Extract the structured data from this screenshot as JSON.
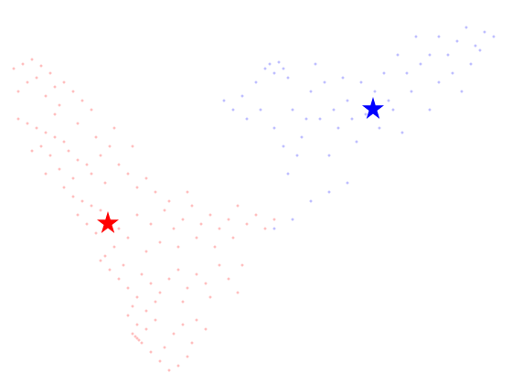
{
  "chart_data": {
    "type": "scatter",
    "xlim": [
      0,
      560
    ],
    "ylim": [
      0,
      420
    ],
    "tick_labels": false,
    "grid": false,
    "series": [
      {
        "color": "#ff0000",
        "marker": "circle",
        "values": [
          [
            15,
            345
          ],
          [
            25,
            350
          ],
          [
            35,
            355
          ],
          [
            45,
            348
          ],
          [
            55,
            340
          ],
          [
            30,
            330
          ],
          [
            40,
            335
          ],
          [
            60,
            325
          ],
          [
            70,
            330
          ],
          [
            80,
            320
          ],
          [
            20,
            320
          ],
          [
            50,
            315
          ],
          [
            90,
            310
          ],
          [
            100,
            300
          ],
          [
            65,
            305
          ],
          [
            20,
            290
          ],
          [
            30,
            285
          ],
          [
            40,
            280
          ],
          [
            50,
            275
          ],
          [
            60,
            270
          ],
          [
            70,
            265
          ],
          [
            45,
            260
          ],
          [
            35,
            255
          ],
          [
            55,
            250
          ],
          [
            75,
            255
          ],
          [
            85,
            245
          ],
          [
            95,
            240
          ],
          [
            65,
            235
          ],
          [
            50,
            230
          ],
          [
            80,
            225
          ],
          [
            100,
            230
          ],
          [
            110,
            250
          ],
          [
            120,
            260
          ],
          [
            130,
            240
          ],
          [
            115,
            220
          ],
          [
            140,
            230
          ],
          [
            150,
            215
          ],
          [
            160,
            225
          ],
          [
            170,
            210
          ],
          [
            60,
            295
          ],
          [
            85,
            285
          ],
          [
            105,
            270
          ],
          [
            125,
            280
          ],
          [
            145,
            260
          ],
          [
            70,
            215
          ],
          [
            80,
            205
          ],
          [
            90,
            200
          ],
          [
            100,
            195
          ],
          [
            110,
            190
          ],
          [
            85,
            185
          ],
          [
            95,
            175
          ],
          [
            105,
            165
          ],
          [
            120,
            180
          ],
          [
            130,
            170
          ],
          [
            140,
            160
          ],
          [
            125,
            150
          ],
          [
            150,
            185
          ],
          [
            165,
            175
          ],
          [
            180,
            190
          ],
          [
            190,
            170
          ],
          [
            200,
            180
          ],
          [
            210,
            195
          ],
          [
            220,
            175
          ],
          [
            230,
            185
          ],
          [
            240,
            170
          ],
          [
            250,
            180
          ],
          [
            260,
            195
          ],
          [
            270,
            175
          ],
          [
            280,
            185
          ],
          [
            290,
            170
          ],
          [
            300,
            180
          ],
          [
            175,
            155
          ],
          [
            195,
            150
          ],
          [
            215,
            160
          ],
          [
            235,
            150
          ],
          [
            255,
            160
          ],
          [
            160,
            145
          ],
          [
            185,
            200
          ],
          [
            205,
            210
          ],
          [
            115,
            140
          ],
          [
            110,
            135
          ],
          [
            120,
            125
          ],
          [
            130,
            115
          ],
          [
            140,
            105
          ],
          [
            150,
            95
          ],
          [
            135,
            130
          ],
          [
            155,
            120
          ],
          [
            165,
            110
          ],
          [
            175,
            100
          ],
          [
            185,
            115
          ],
          [
            195,
            125
          ],
          [
            205,
            105
          ],
          [
            215,
            120
          ],
          [
            225,
            110
          ],
          [
            240,
            130
          ],
          [
            250,
            115
          ],
          [
            145,
            85
          ],
          [
            160,
            80
          ],
          [
            170,
            90
          ],
          [
            200,
            90
          ],
          [
            230,
            95
          ],
          [
            260,
            100
          ],
          [
            265,
            130
          ],
          [
            140,
            75
          ],
          [
            150,
            65
          ],
          [
            145,
            55
          ],
          [
            155,
            45
          ],
          [
            165,
            35
          ],
          [
            175,
            25
          ],
          [
            185,
            15
          ],
          [
            195,
            20
          ],
          [
            205,
            30
          ],
          [
            150,
            50
          ],
          [
            160,
            60
          ],
          [
            170,
            70
          ],
          [
            190,
            55
          ],
          [
            210,
            45
          ],
          [
            200,
            65
          ],
          [
            180,
            40
          ],
          [
            148,
            52
          ],
          [
            152,
            48
          ],
          [
            215,
            70
          ],
          [
            225,
            60
          ]
        ]
      },
      {
        "color": "#0000ff",
        "marker": "circle",
        "values": [
          [
            245,
            310
          ],
          [
            255,
            300
          ],
          [
            265,
            315
          ],
          [
            270,
            290
          ],
          [
            280,
            330
          ],
          [
            290,
            345
          ],
          [
            295,
            350
          ],
          [
            300,
            340
          ],
          [
            305,
            352
          ],
          [
            310,
            345
          ],
          [
            315,
            335
          ],
          [
            285,
            300
          ],
          [
            300,
            280
          ],
          [
            310,
            260
          ],
          [
            320,
            300
          ],
          [
            330,
            270
          ],
          [
            340,
            320
          ],
          [
            350,
            290
          ],
          [
            360,
            250
          ],
          [
            370,
            280
          ],
          [
            380,
            310
          ],
          [
            390,
            265
          ],
          [
            400,
            295
          ],
          [
            410,
            320
          ],
          [
            420,
            340
          ],
          [
            430,
            300
          ],
          [
            440,
            275
          ],
          [
            450,
            320
          ],
          [
            460,
            350
          ],
          [
            470,
            300
          ],
          [
            480,
            330
          ],
          [
            490,
            360
          ],
          [
            500,
            375
          ],
          [
            510,
            390
          ],
          [
            520,
            370
          ],
          [
            530,
            385
          ],
          [
            540,
            380
          ],
          [
            495,
            340
          ],
          [
            505,
            320
          ],
          [
            515,
            350
          ],
          [
            525,
            365
          ],
          [
            480,
            380
          ],
          [
            470,
            360
          ],
          [
            455,
            380
          ],
          [
            445,
            340
          ],
          [
            435,
            360
          ],
          [
            425,
            310
          ],
          [
            415,
            280
          ],
          [
            395,
            330
          ],
          [
            385,
            290
          ],
          [
            375,
            335
          ],
          [
            365,
            300
          ],
          [
            355,
            330
          ],
          [
            345,
            350
          ],
          [
            335,
            290
          ],
          [
            325,
            250
          ],
          [
            315,
            230
          ],
          [
            300,
            170
          ],
          [
            320,
            180
          ],
          [
            340,
            200
          ],
          [
            360,
            210
          ],
          [
            380,
            220
          ]
        ]
      },
      {
        "color": "#ff0000",
        "marker": "star",
        "values": [
          [
            118,
            177
          ]
        ]
      },
      {
        "color": "#0000ff",
        "marker": "star",
        "values": [
          [
            408,
            302
          ]
        ]
      }
    ]
  }
}
